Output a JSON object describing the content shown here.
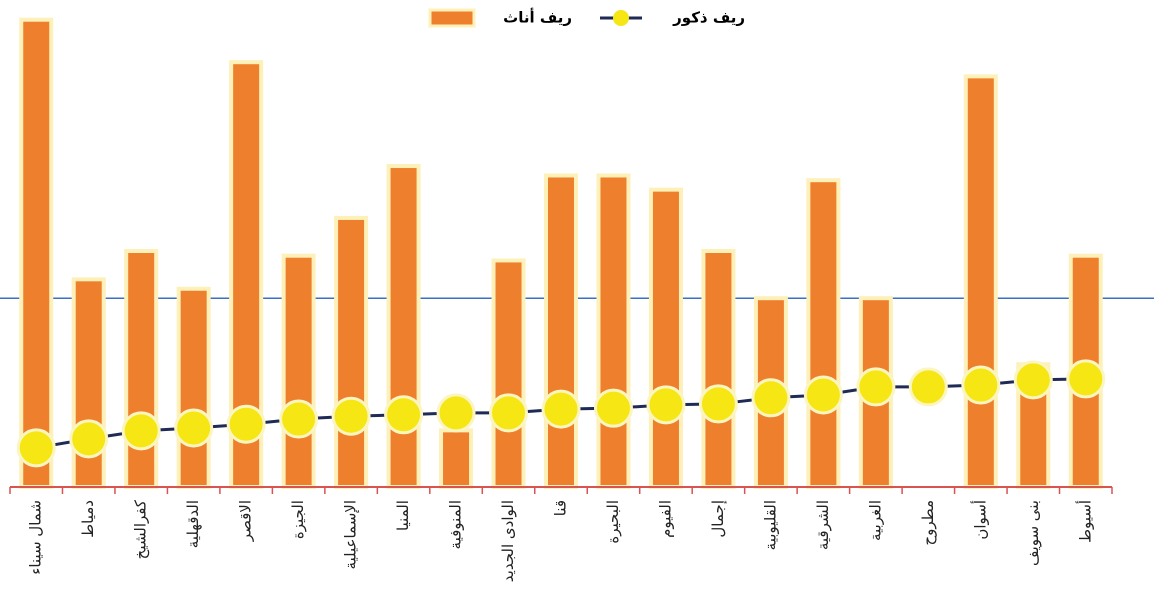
{
  "chart_data": {
    "type": "bar_line",
    "categories": [
      "شمال سيناء",
      "دمياط",
      "كفرالشيخ",
      "الدقهلية",
      "الاقصر",
      "الجيزة",
      "الإسماعيلية",
      "المنيا",
      "المنوفية",
      "الوادى الجديد",
      "قنا",
      "البحيرة",
      "الفيوم",
      "إجمال",
      "القليوبية",
      "الشرقية",
      "الغربية",
      "مطروح",
      "أسوان",
      "بنى سويف",
      "أسيوط"
    ],
    "series": [
      {
        "name": "ريف أناث",
        "kind": "bar",
        "color": "#ee7f2d",
        "values": [
          99,
          44,
          50,
          42,
          90,
          49,
          57,
          68,
          12,
          48,
          66,
          66,
          63,
          50,
          40,
          65,
          40,
          null,
          87,
          26,
          49
        ]
      },
      {
        "name": "ريف ذكور",
        "kind": "line",
        "color": "#1f2a56",
        "marker_color": "#f5e614",
        "values": [
          8.3,
          10.2,
          11.9,
          12.5,
          13.3,
          14.4,
          15,
          15.3,
          15.7,
          15.7,
          16.5,
          16.7,
          17.4,
          17.6,
          18.9,
          19.5,
          21.2,
          21.2,
          21.6,
          22.7,
          22.9
        ]
      }
    ],
    "reference_line": {
      "value": 40,
      "color": "#3a6fc4"
    },
    "ylim": [
      0,
      100
    ]
  }
}
